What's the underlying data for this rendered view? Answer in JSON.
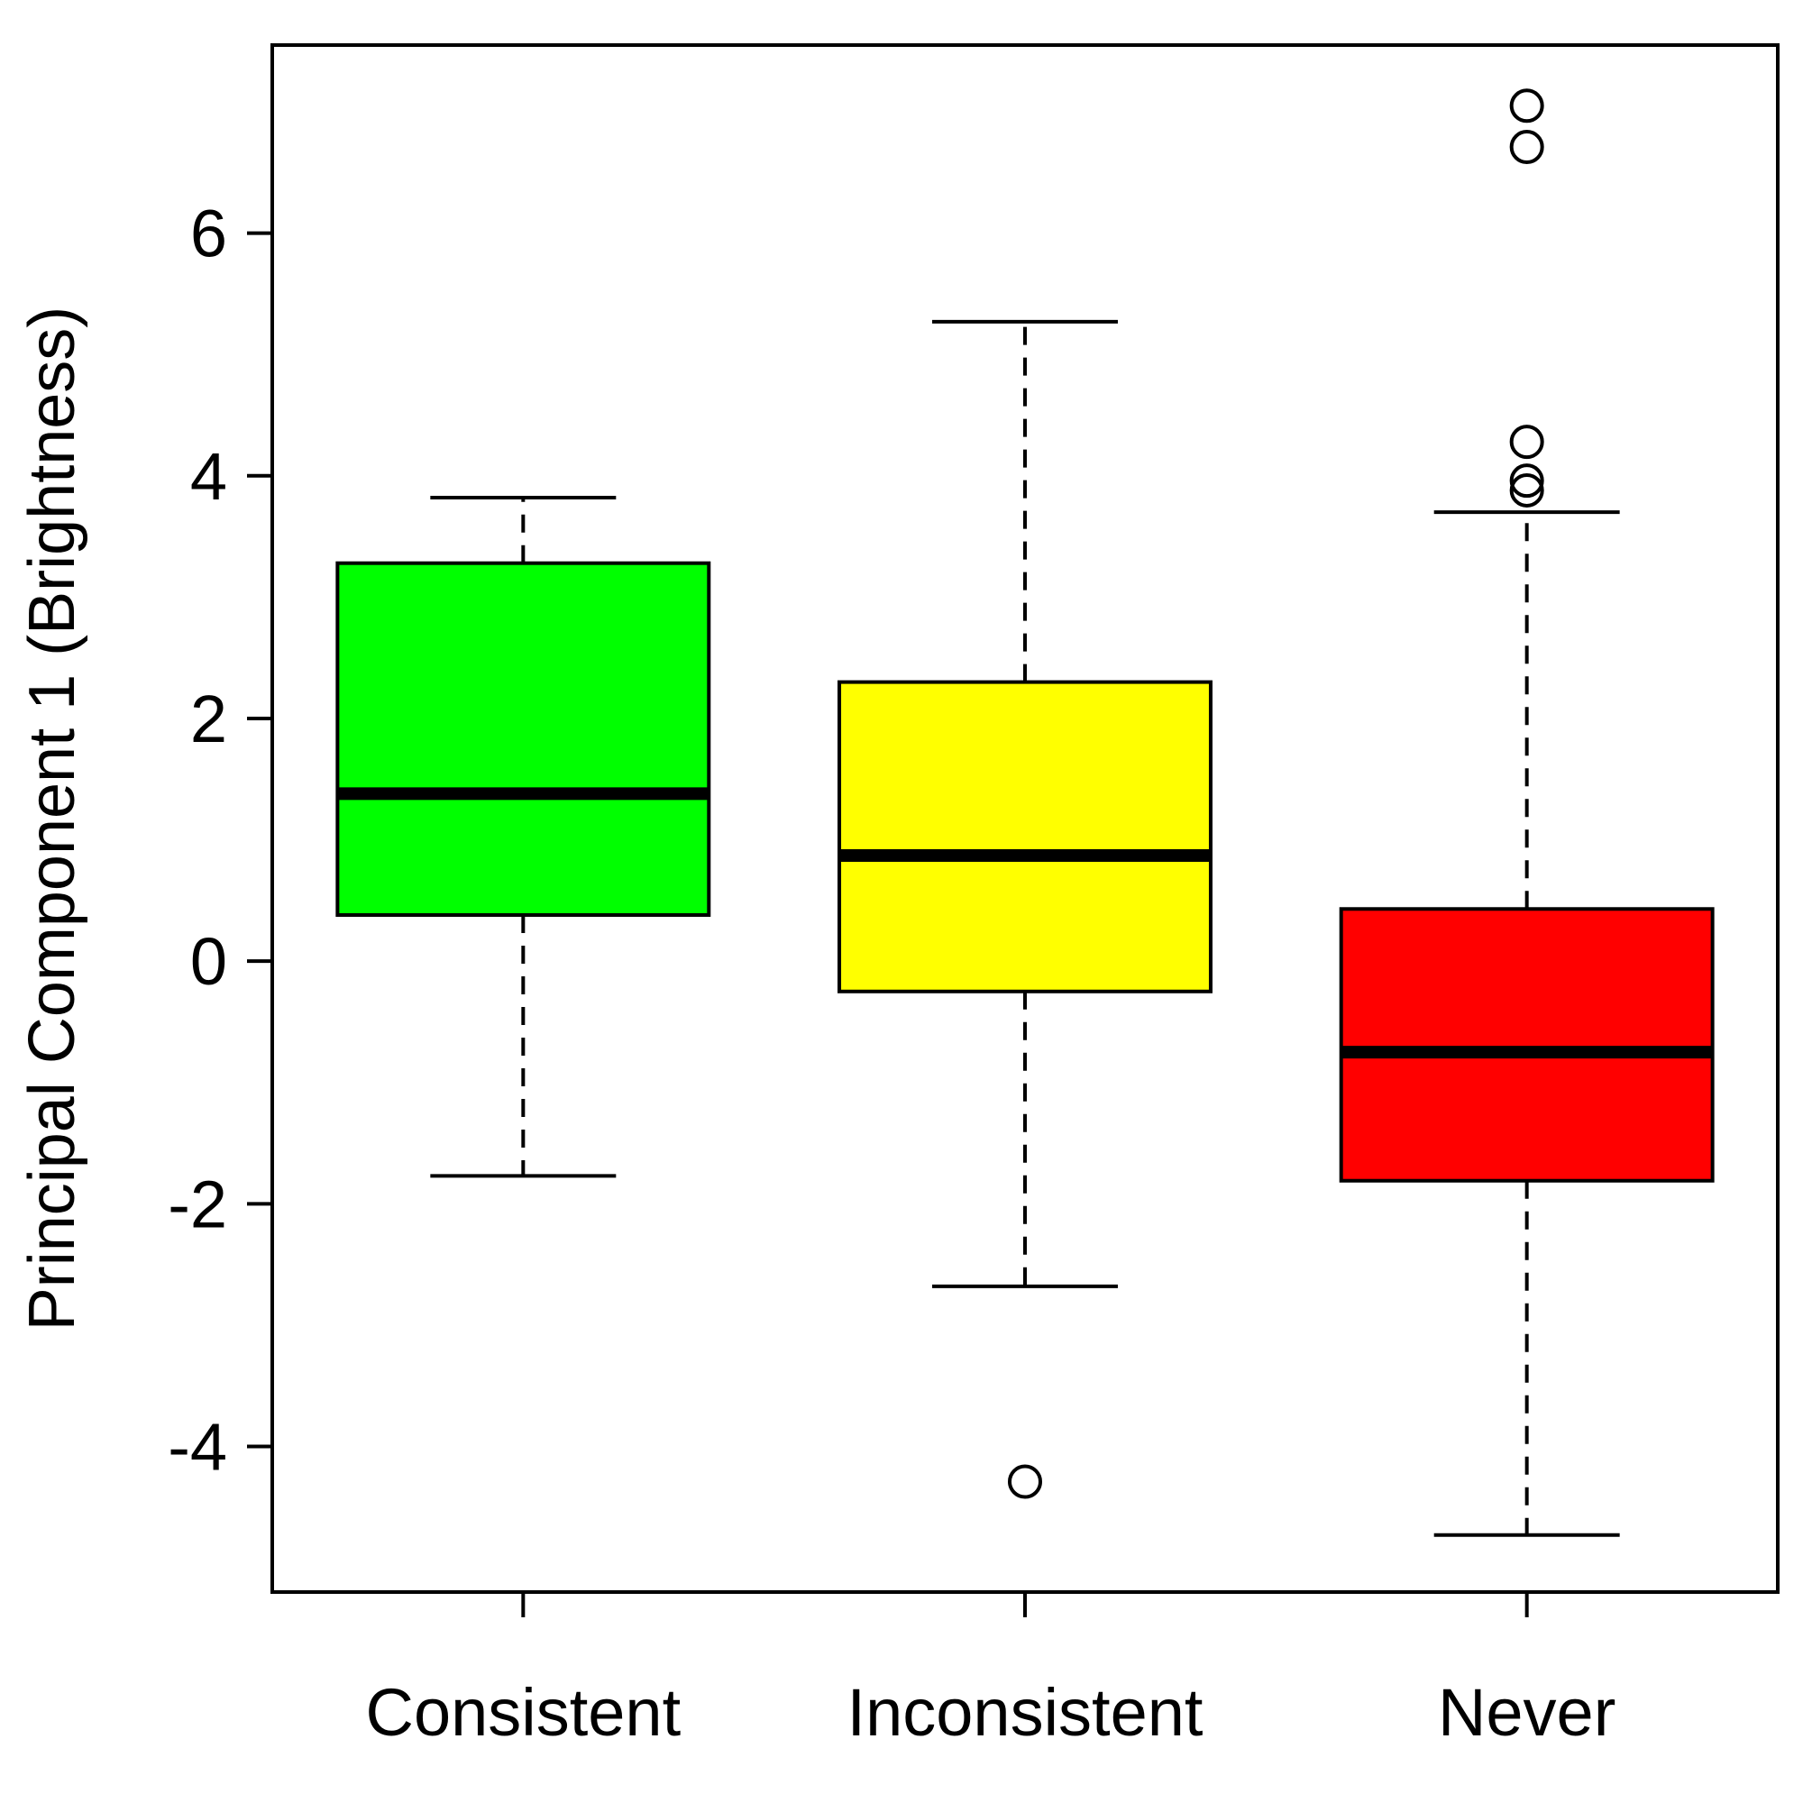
{
  "chart_data": {
    "type": "boxplot",
    "title": "",
    "xlabel": "",
    "ylabel": "Principal Component 1 (Brightness)",
    "ylim": [
      -5.2,
      7.55
    ],
    "yticks": [
      -4,
      -2,
      0,
      2,
      4,
      6
    ],
    "ytick_labels": [
      "-4",
      "-2",
      "0",
      "2",
      "4",
      "6"
    ],
    "grid": false,
    "legend": "none",
    "categories": [
      "Consistent",
      "Inconsistent",
      "Never"
    ],
    "series": [
      {
        "category": "Consistent",
        "color": "#00ff00",
        "whisker_low": -1.77,
        "q1": 0.38,
        "median": 1.38,
        "q3": 3.28,
        "whisker_high": 3.82,
        "outliers": []
      },
      {
        "category": "Inconsistent",
        "color": "#ffff00",
        "whisker_low": -2.68,
        "q1": -0.25,
        "median": 0.87,
        "q3": 2.3,
        "whisker_high": 5.27,
        "outliers": [
          -4.29
        ]
      },
      {
        "category": "Never",
        "color": "#ff0000",
        "whisker_low": -4.73,
        "q1": -1.81,
        "median": -0.75,
        "q3": 0.43,
        "whisker_high": 3.7,
        "outliers": [
          3.88,
          3.96,
          4.28,
          6.71,
          7.05
        ]
      }
    ]
  }
}
